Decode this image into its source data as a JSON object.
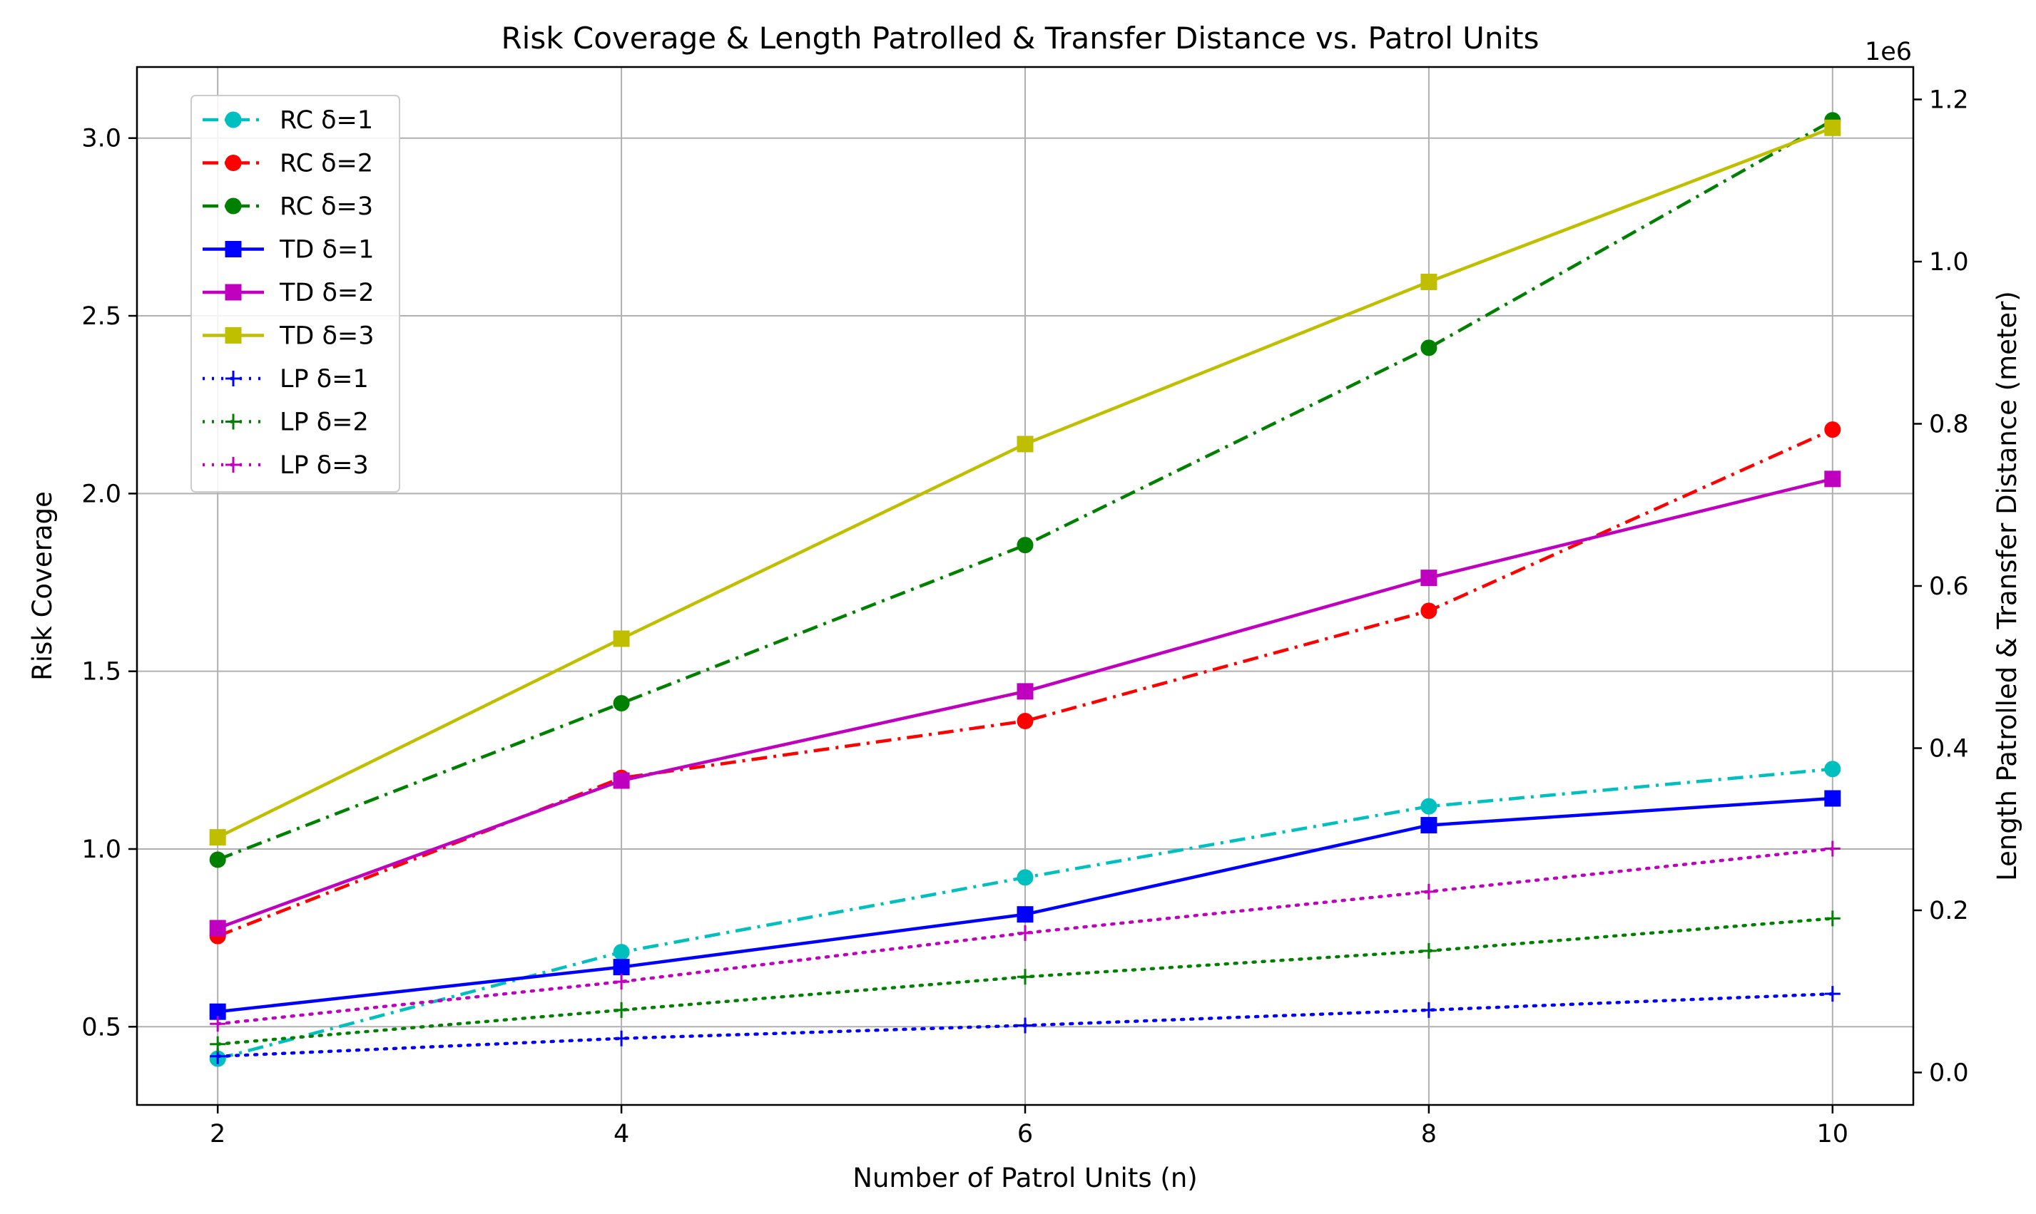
{
  "chart_data": {
    "type": "line",
    "title": "Risk Coverage & Length Patrolled & Transfer Distance  vs. Patrol Units",
    "xlabel": "Number of Patrol Units (n)",
    "ylabel": "Risk Coverage",
    "y2label": "Length Patrolled & Transfer Distance (meter)",
    "y2_offset_text": "1e6",
    "x": [
      2,
      4,
      6,
      8,
      10
    ],
    "xlim": [
      1.6,
      10.4
    ],
    "ylim": [
      0.28,
      3.2
    ],
    "y2lim": [
      -40000,
      1240000
    ],
    "xticks": [
      2,
      4,
      6,
      8,
      10
    ],
    "yticks": [
      0.5,
      1.0,
      1.5,
      2.0,
      2.5,
      3.0
    ],
    "ytick_labels": [
      "0.5",
      "1.0",
      "1.5",
      "2.0",
      "2.5",
      "3.0"
    ],
    "y2ticks": [
      0,
      200000,
      400000,
      600000,
      800000,
      1000000,
      1200000
    ],
    "y2tick_labels": [
      "0.0",
      "0.2",
      "0.4",
      "0.6",
      "0.8",
      "1.0",
      "1.2"
    ],
    "grid": true,
    "legend_position": "top-left",
    "series": [
      {
        "name": "RC δ=1",
        "axis": "left",
        "color": "#00bfbf",
        "dash": "dashdot",
        "marker": "circle",
        "values": [
          0.41,
          0.71,
          0.92,
          1.12,
          1.225
        ]
      },
      {
        "name": "RC δ=2",
        "axis": "left",
        "color": "#ff0000",
        "dash": "dashdot",
        "marker": "circle",
        "values": [
          0.755,
          1.2,
          1.36,
          1.67,
          2.18
        ]
      },
      {
        "name": "RC δ=3",
        "axis": "left",
        "color": "#008000",
        "dash": "dashdot",
        "marker": "circle",
        "values": [
          0.97,
          1.41,
          1.855,
          2.41,
          3.05
        ]
      },
      {
        "name": "TD δ=1",
        "axis": "right",
        "color": "#0000ff",
        "dash": "solid",
        "marker": "square",
        "values": [
          75000,
          130000,
          195000,
          305000,
          338000
        ]
      },
      {
        "name": "TD δ=2",
        "axis": "right",
        "color": "#bf00bf",
        "dash": "solid",
        "marker": "square",
        "values": [
          178000,
          360000,
          470000,
          610000,
          732000
        ]
      },
      {
        "name": "TD δ=3",
        "axis": "right",
        "color": "#bfbf00",
        "dash": "solid",
        "marker": "square",
        "values": [
          290000,
          535000,
          775000,
          975000,
          1165000
        ]
      },
      {
        "name": "LP δ=1",
        "axis": "right",
        "color": "#0000ff",
        "dash": "dotted",
        "marker": "plus",
        "values": [
          20000,
          42000,
          58000,
          77000,
          97000
        ]
      },
      {
        "name": "LP δ=2",
        "axis": "right",
        "color": "#008000",
        "dash": "dotted",
        "marker": "plus",
        "values": [
          35000,
          77000,
          118000,
          150000,
          190000
        ]
      },
      {
        "name": "LP δ=3",
        "axis": "right",
        "color": "#bf00bf",
        "dash": "dotted",
        "marker": "plus",
        "values": [
          60000,
          112000,
          172000,
          223000,
          276000
        ]
      }
    ]
  }
}
